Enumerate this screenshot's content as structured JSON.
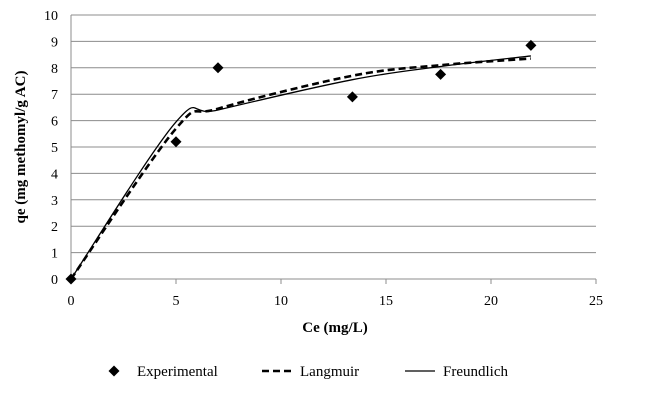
{
  "chart_data": {
    "type": "scatter",
    "title": "",
    "xlabel": "Ce (mg/L)",
    "ylabel": "qe (mg methomyl/g AC)",
    "xlim": [
      0,
      25
    ],
    "ylim": [
      0,
      10
    ],
    "xticks": [
      "0",
      "5",
      "10",
      "15",
      "20",
      "25"
    ],
    "yticks": [
      "0",
      "1",
      "2",
      "3",
      "4",
      "5",
      "6",
      "7",
      "8",
      "9",
      "10"
    ],
    "grid": "horizontal",
    "legend_position": "bottom",
    "series": [
      {
        "name": "Experimental",
        "kind": "markers",
        "marker": "diamond",
        "x": [
          0,
          5.0,
          7.0,
          13.4,
          17.6,
          21.9
        ],
        "y": [
          0,
          5.2,
          8.0,
          6.9,
          7.75,
          8.85
        ]
      },
      {
        "name": "Langmuir",
        "kind": "line",
        "style": "dashed",
        "x": [
          0,
          5.0,
          7.0,
          13.4,
          17.6,
          21.9
        ],
        "y": [
          0,
          5.7,
          6.45,
          7.7,
          8.1,
          8.35
        ]
      },
      {
        "name": "Freundlich",
        "kind": "line",
        "style": "solid",
        "x": [
          0,
          5.0,
          7.0,
          13.4,
          17.6,
          21.9
        ],
        "y": [
          0,
          5.95,
          6.4,
          7.55,
          8.05,
          8.45
        ]
      }
    ]
  }
}
